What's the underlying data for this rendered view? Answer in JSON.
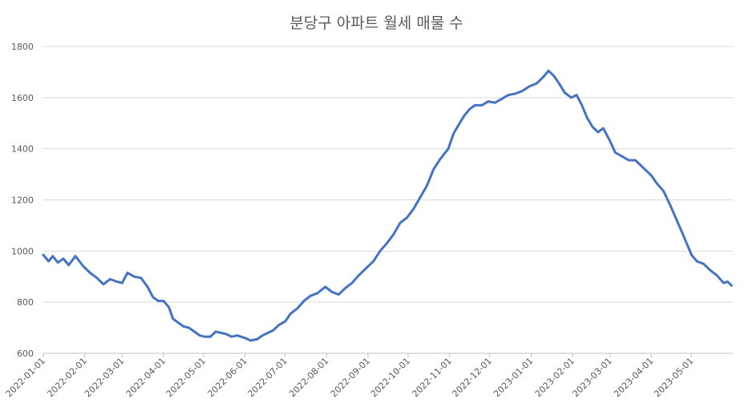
{
  "chart_data": {
    "type": "line",
    "title": "분당구 아파트 월세 매물 수",
    "xlabel": "",
    "ylabel": "",
    "ylim": [
      600,
      1800
    ],
    "yticks": [
      600,
      800,
      1000,
      1200,
      1400,
      1600,
      1800
    ],
    "grid": true,
    "legend": "none",
    "x_ticks": [
      "2022-01-01",
      "2022-02-01",
      "2022-03-01",
      "2022-04-01",
      "2022-05-01",
      "2022-06-01",
      "2022-07-01",
      "2022-08-01",
      "2022-09-01",
      "2022-10-01",
      "2022-11-01",
      "2022-12-01",
      "2023-01-01",
      "2023-02-01",
      "2023-03-01",
      "2023-04-01",
      "2023-05-01"
    ],
    "x_range": [
      "2022-01-01",
      "2023-06-01"
    ],
    "line_color": "#4472C4",
    "series": [
      {
        "points": [
          [
            "2022-01-01",
            985
          ],
          [
            "2022-01-05",
            960
          ],
          [
            "2022-01-08",
            980
          ],
          [
            "2022-01-12",
            955
          ],
          [
            "2022-01-16",
            970
          ],
          [
            "2022-01-20",
            945
          ],
          [
            "2022-01-25",
            980
          ],
          [
            "2022-01-31",
            940
          ],
          [
            "2022-02-05",
            915
          ],
          [
            "2022-02-10",
            895
          ],
          [
            "2022-02-15",
            870
          ],
          [
            "2022-02-20",
            890
          ],
          [
            "2022-02-25",
            880
          ],
          [
            "2022-03-01",
            875
          ],
          [
            "2022-03-05",
            915
          ],
          [
            "2022-03-10",
            900
          ],
          [
            "2022-03-15",
            895
          ],
          [
            "2022-03-20",
            860
          ],
          [
            "2022-03-24",
            820
          ],
          [
            "2022-03-28",
            805
          ],
          [
            "2022-04-01",
            805
          ],
          [
            "2022-04-05",
            780
          ],
          [
            "2022-04-08",
            735
          ],
          [
            "2022-04-12",
            720
          ],
          [
            "2022-04-16",
            705
          ],
          [
            "2022-04-20",
            700
          ],
          [
            "2022-04-24",
            685
          ],
          [
            "2022-04-28",
            670
          ],
          [
            "2022-05-02",
            665
          ],
          [
            "2022-05-06",
            665
          ],
          [
            "2022-05-10",
            685
          ],
          [
            "2022-05-14",
            680
          ],
          [
            "2022-05-18",
            675
          ],
          [
            "2022-05-22",
            665
          ],
          [
            "2022-05-26",
            670
          ],
          [
            "2022-06-01",
            660
          ],
          [
            "2022-06-05",
            650
          ],
          [
            "2022-06-10",
            655
          ],
          [
            "2022-06-14",
            670
          ],
          [
            "2022-06-18",
            680
          ],
          [
            "2022-06-22",
            690
          ],
          [
            "2022-06-26",
            710
          ],
          [
            "2022-07-01",
            725
          ],
          [
            "2022-07-05",
            755
          ],
          [
            "2022-07-10",
            775
          ],
          [
            "2022-07-15",
            805
          ],
          [
            "2022-07-20",
            825
          ],
          [
            "2022-07-25",
            835
          ],
          [
            "2022-07-31",
            860
          ],
          [
            "2022-08-05",
            840
          ],
          [
            "2022-08-10",
            830
          ],
          [
            "2022-08-15",
            855
          ],
          [
            "2022-08-20",
            875
          ],
          [
            "2022-08-25",
            905
          ],
          [
            "2022-08-31",
            935
          ],
          [
            "2022-09-05",
            960
          ],
          [
            "2022-09-10",
            1000
          ],
          [
            "2022-09-15",
            1030
          ],
          [
            "2022-09-20",
            1065
          ],
          [
            "2022-09-25",
            1110
          ],
          [
            "2022-09-30",
            1130
          ],
          [
            "2022-10-05",
            1165
          ],
          [
            "2022-10-10",
            1210
          ],
          [
            "2022-10-15",
            1255
          ],
          [
            "2022-10-20",
            1320
          ],
          [
            "2022-10-25",
            1360
          ],
          [
            "2022-10-31",
            1400
          ],
          [
            "2022-11-04",
            1460
          ],
          [
            "2022-11-08",
            1495
          ],
          [
            "2022-11-12",
            1530
          ],
          [
            "2022-11-16",
            1555
          ],
          [
            "2022-11-20",
            1570
          ],
          [
            "2022-11-25",
            1570
          ],
          [
            "2022-11-30",
            1585
          ],
          [
            "2022-12-05",
            1580
          ],
          [
            "2022-12-10",
            1595
          ],
          [
            "2022-12-15",
            1610
          ],
          [
            "2022-12-20",
            1615
          ],
          [
            "2022-12-25",
            1625
          ],
          [
            "2022-12-31",
            1645
          ],
          [
            "2023-01-05",
            1655
          ],
          [
            "2023-01-10",
            1680
          ],
          [
            "2023-01-14",
            1705
          ],
          [
            "2023-01-18",
            1685
          ],
          [
            "2023-01-22",
            1655
          ],
          [
            "2023-01-26",
            1620
          ],
          [
            "2023-01-31",
            1600
          ],
          [
            "2023-02-04",
            1610
          ],
          [
            "2023-02-08",
            1570
          ],
          [
            "2023-02-12",
            1520
          ],
          [
            "2023-02-16",
            1485
          ],
          [
            "2023-02-20",
            1465
          ],
          [
            "2023-02-24",
            1480
          ],
          [
            "2023-03-01",
            1430
          ],
          [
            "2023-03-05",
            1385
          ],
          [
            "2023-03-10",
            1370
          ],
          [
            "2023-03-15",
            1355
          ],
          [
            "2023-03-20",
            1355
          ],
          [
            "2023-03-25",
            1330
          ],
          [
            "2023-04-01",
            1295
          ],
          [
            "2023-04-05",
            1265
          ],
          [
            "2023-04-10",
            1235
          ],
          [
            "2023-04-15",
            1180
          ],
          [
            "2023-04-20",
            1120
          ],
          [
            "2023-04-25",
            1060
          ],
          [
            "2023-05-01",
            985
          ],
          [
            "2023-05-05",
            960
          ],
          [
            "2023-05-10",
            950
          ],
          [
            "2023-05-15",
            925
          ],
          [
            "2023-05-20",
            905
          ],
          [
            "2023-05-25",
            875
          ],
          [
            "2023-05-28",
            880
          ],
          [
            "2023-05-31",
            865
          ]
        ]
      }
    ]
  }
}
